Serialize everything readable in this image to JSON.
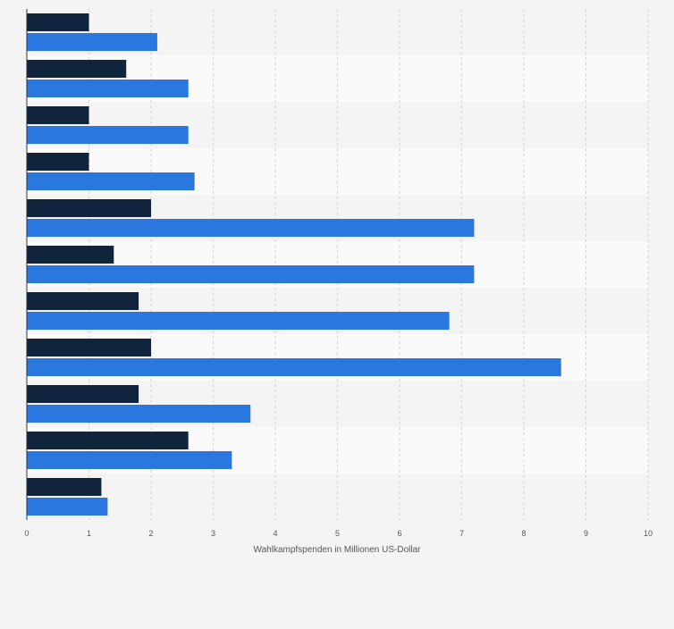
{
  "chart_data": {
    "type": "bar",
    "orientation": "horizontal",
    "xlabel": "Wahlkampfspenden in Millionen US-Dollar",
    "xlim": [
      0,
      10
    ],
    "ticks": [
      "0",
      "1",
      "2",
      "3",
      "4",
      "5",
      "6",
      "7",
      "8",
      "9",
      "10"
    ],
    "grid": true,
    "categories": [
      "",
      "",
      "",
      "",
      "",
      "",
      "",
      "",
      "",
      "",
      ""
    ],
    "series": [
      {
        "color": "#10243e",
        "values": [
          1.0,
          1.6,
          1.0,
          1.0,
          2.0,
          1.4,
          1.8,
          2.0,
          1.8,
          2.6,
          1.2
        ]
      },
      {
        "color": "#2a77e0",
        "values": [
          2.1,
          2.6,
          2.6,
          2.7,
          7.2,
          7.2,
          6.8,
          8.6,
          3.6,
          3.3,
          1.3
        ]
      }
    ],
    "colors": {
      "background": "#f4f4f4",
      "band_even": "#f4f4f4",
      "band_odd": "#fafafa",
      "grid": "#d4d4d4",
      "axis": "#333333",
      "tick_text": "#555555"
    }
  }
}
